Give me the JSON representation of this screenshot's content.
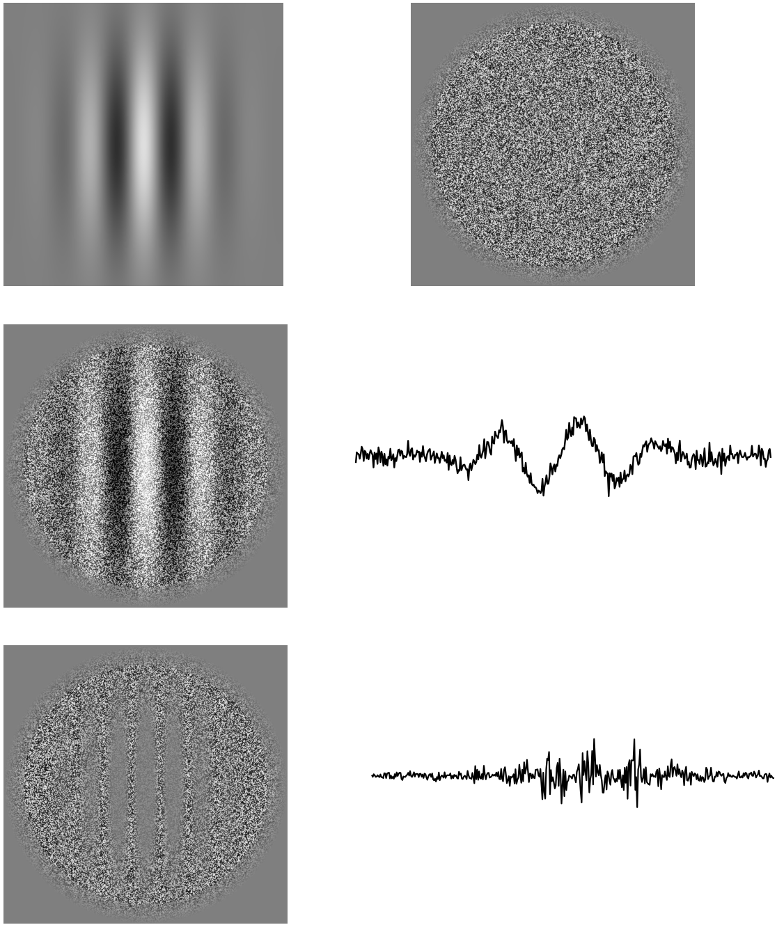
{
  "figure": {
    "background": "#ffffff",
    "panel_gray": "#7f7f7f",
    "trace_color": "#000000",
    "panels": [
      {
        "id": "gabor-patch",
        "kind": "vertical gabor grating, smooth",
        "orientation": "vertical",
        "cycles_visible": 4
      },
      {
        "id": "noise-patch",
        "kind": "circular white noise"
      },
      {
        "id": "noisy-gabor",
        "kind": "gabor grating embedded in circular noise"
      },
      {
        "id": "masked-noise",
        "kind": "circular noise with gabor-shaped low-contrast region"
      }
    ],
    "traces": [
      {
        "id": "trace-top",
        "kind": "noisy sinusoidal profile",
        "cycles": 2
      },
      {
        "id": "trace-bottom",
        "kind": "noise with gabor-modulated amplitude"
      }
    ]
  }
}
